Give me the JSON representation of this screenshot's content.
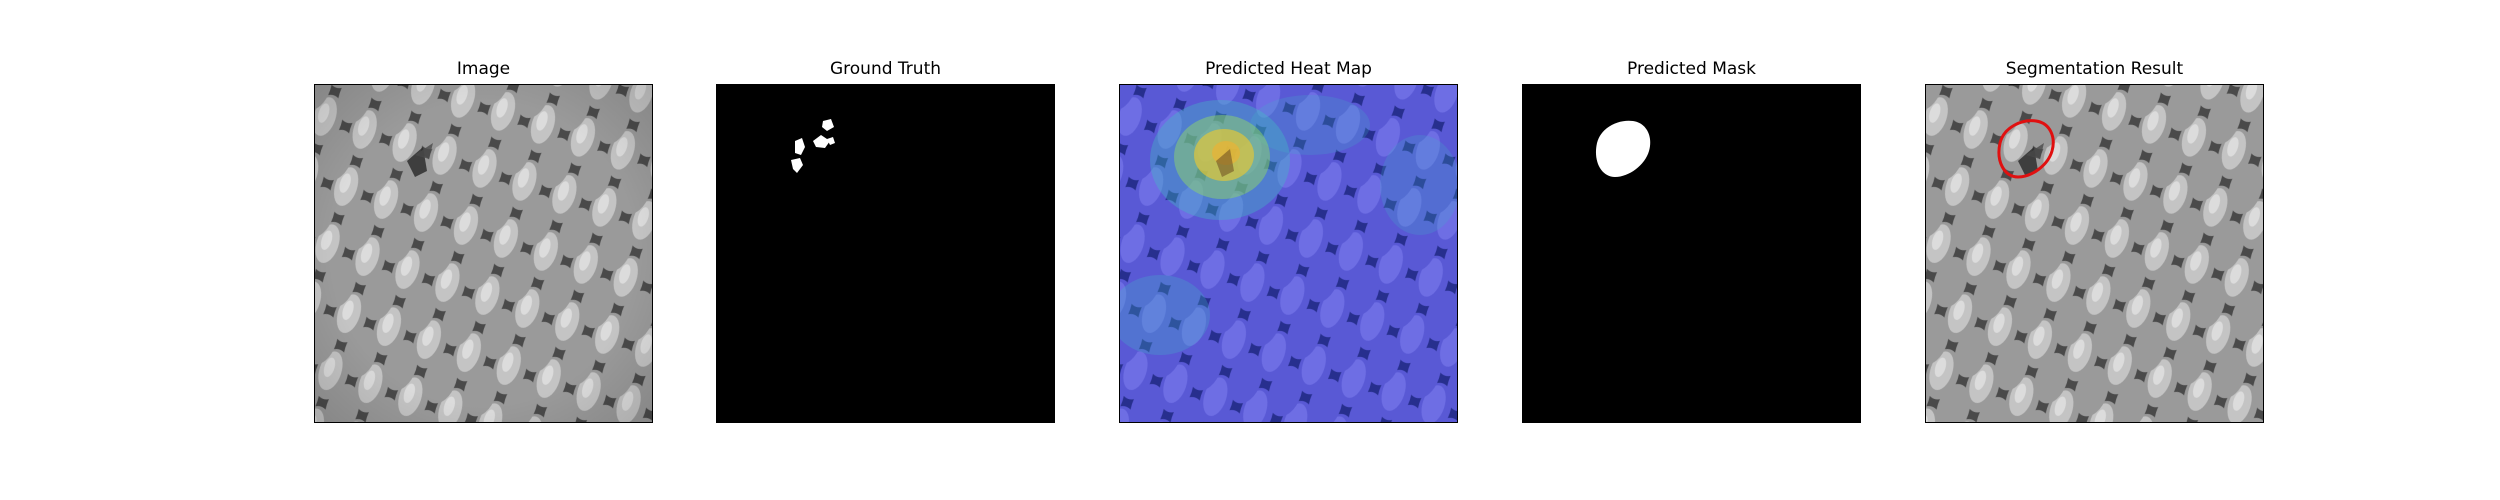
{
  "figure": {
    "panels": [
      {
        "id": "image",
        "title": "Image",
        "kind": "texture-photo"
      },
      {
        "id": "ground-truth",
        "title": "Ground Truth",
        "kind": "binary-mask-ground-truth"
      },
      {
        "id": "heat-map",
        "title": "Predicted Heat Map",
        "kind": "heatmap-overlay"
      },
      {
        "id": "predicted-mask",
        "title": "Predicted Mask",
        "kind": "binary-mask-predicted"
      },
      {
        "id": "segmentation",
        "title": "Segmentation Result",
        "kind": "contour-overlay"
      }
    ],
    "colors": {
      "mask_background": "#000000",
      "mask_foreground": "#ffffff",
      "contour": "#e01010",
      "texture_cell": "#b8b8b8",
      "texture_edge": "#3c3c3c",
      "heatmap_low": "#3c3cc8",
      "heatmap_high": "#e8c832"
    }
  }
}
